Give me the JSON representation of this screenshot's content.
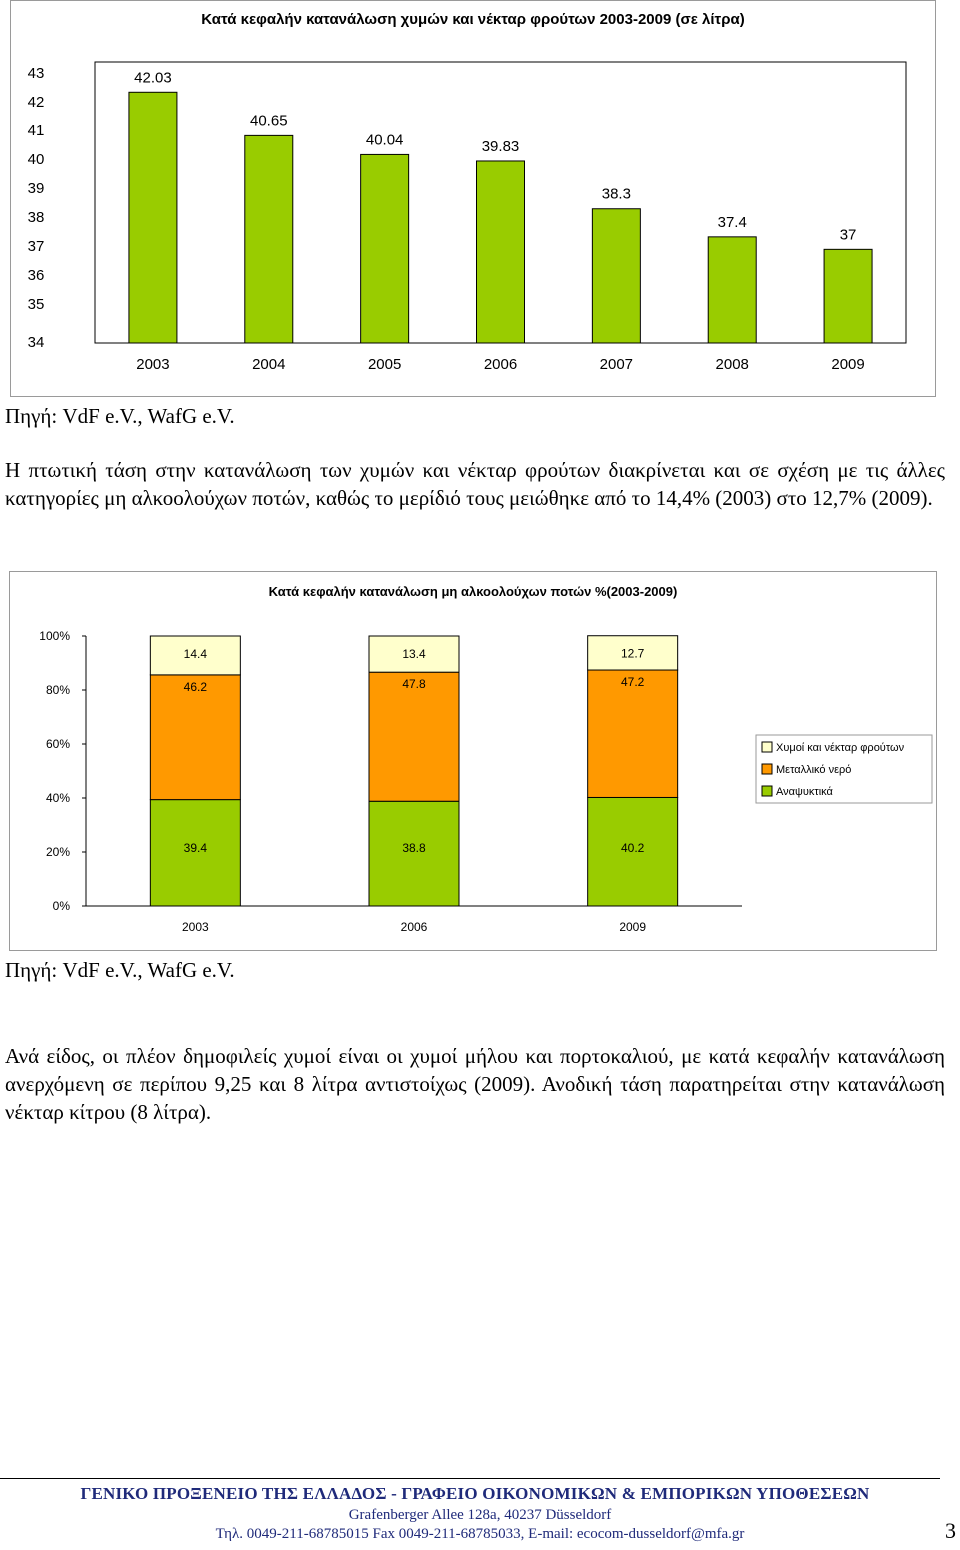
{
  "chart_data": [
    {
      "type": "bar",
      "title": "Κατά κεφαλήν κατανάλωση χυμών και νέκταρ φρούτων 2003-2009 (σε λίτρα)",
      "categories": [
        "2003",
        "2004",
        "2005",
        "2006",
        "2007",
        "2008",
        "2009"
      ],
      "values": [
        42.03,
        40.65,
        40.04,
        39.83,
        38.3,
        37.4,
        37
      ],
      "value_labels": [
        "42.03",
        "40.65",
        "40.04",
        "39.83",
        "38.3",
        "37.4",
        "37"
      ],
      "y_ticks": [
        "43",
        "42",
        "41",
        "40",
        "39",
        "38",
        "37",
        "36",
        "35",
        "34"
      ],
      "ylim": [
        34,
        43
      ],
      "bar_color": "#99cc00",
      "grid": false,
      "legend": false
    },
    {
      "type": "bar",
      "stacked": true,
      "title": "Κατά κεφαλήν κατανάλωση μη αλκοολούχων ποτών %(2003-2009)",
      "categories": [
        "2003",
        "2006",
        "2009"
      ],
      "series": [
        {
          "name": "Αναψυκτικά",
          "values": [
            39.4,
            38.8,
            40.2
          ],
          "labels": [
            "39.4",
            "38.8",
            "40.2"
          ],
          "color": "#99cc00"
        },
        {
          "name": "Μεταλλικό νερό",
          "values": [
            46.2,
            47.8,
            47.2
          ],
          "labels": [
            "46.2",
            "47.8",
            "47.2"
          ],
          "color": "#ff9900"
        },
        {
          "name": "Χυμοί και νέκταρ φρούτων",
          "values": [
            14.4,
            13.4,
            12.7
          ],
          "labels": [
            "14.4",
            "13.4",
            "12.7"
          ],
          "color": "#ffffcc"
        }
      ],
      "y_ticks": [
        "100%",
        "80%",
        "60%",
        "40%",
        "20%",
        "0%"
      ],
      "ylim": [
        0,
        100
      ],
      "legend_placement": "right",
      "legend_order": [
        "Χυμοί και νέκταρ φρούτων",
        "Μεταλλικό νερό",
        "Αναψυκτικά"
      ],
      "grid": false
    }
  ],
  "source_1": "Πηγή: VdF e.V., WafG e.V.",
  "paragraph_1": "Η πτωτική τάση στην κατανάλωση των χυμών και νέκταρ φρούτων διακρίνεται και σε σχέση με τις άλλες κατηγορίες μη αλκοολούχων ποτών, καθώς το μερίδιό τους μειώθηκε από το 14,4% (2003) στο 12,7% (2009).",
  "source_2": "Πηγή: VdF e.V., WafG e.V.",
  "paragraph_2": "Ανά είδος, οι πλέον δημοφιλείς χυμοί είναι οι χυμοί μήλου και πορτοκαλιού, με κατά κεφαλήν κατανάλωση ανερχόμενη σε περίπου 9,25 και 8 λίτρα αντιστοίχως (2009). Ανοδική τάση παρατηρείται στην κατανάλωση νέκταρ κίτρου (8 λίτρα).",
  "footer": {
    "organization": "ΓΕΝΙΚΟ ΠΡΟΞΕΝΕΙΟ ΤΗΣ ΕΛΛΑΔΟΣ - ΓΡΑΦΕΙΟ ΟΙΚΟΝΟΜΙΚΩΝ & ΕΜΠΟΡΙΚΩΝ ΥΠΟΘΕΣΕΩΝ",
    "address": "Grafenberger Allee 128a, 40237 Düsseldorf",
    "contact": "Τηλ. 0049-211-68785015 Fax 0049-211-68785033, E-mail: ecocom-dusseldorf@mfa.gr",
    "page_number": "3"
  }
}
